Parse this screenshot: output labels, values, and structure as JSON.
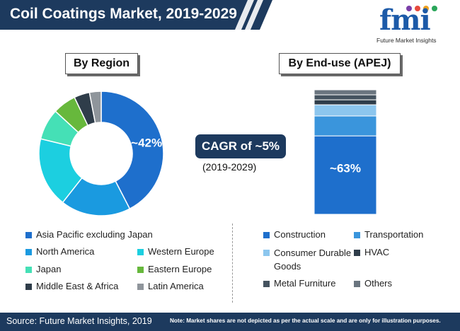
{
  "title": "Coil Coatings Market, 2019-2029",
  "logo": {
    "letters": "fmi",
    "tagline": "Future Market Insights"
  },
  "cagr": {
    "label": "CAGR of ~5%",
    "period": "(2019-2029)"
  },
  "chart_data": [
    {
      "type": "pie",
      "title": "By Region",
      "categories": [
        "Asia Pacific excluding Japan",
        "North America",
        "Western Europe",
        "Japan",
        "Eastern Europe",
        "Middle East & Africa",
        "Latin America"
      ],
      "values": [
        42,
        18,
        18,
        8,
        6,
        4,
        3
      ],
      "colors": [
        "#1e6fcc",
        "#1a9ae0",
        "#1ccfe0",
        "#45e0b6",
        "#67b83c",
        "#2f3d4a",
        "#8f959b"
      ],
      "data_labels": [
        "~42%",
        "",
        "",
        "",
        "",
        "",
        ""
      ],
      "hole": "donut",
      "legend_position": "bottom-left"
    },
    {
      "type": "bar",
      "title": "By End-use (APEJ)",
      "stacked": true,
      "categories": [
        "Construction",
        "Transportation",
        "Consumer Durable Goods",
        "HVAC",
        "Metal Furniture",
        "Others"
      ],
      "values": [
        63,
        16,
        9,
        4,
        4,
        4
      ],
      "colors": [
        "#1e6fcc",
        "#3a95dc",
        "#8cc6ee",
        "#2f3d4a",
        "#45535f",
        "#6a757f"
      ],
      "data_labels": [
        "~63%",
        "",
        "",
        "",
        "",
        ""
      ],
      "legend_position": "bottom-right"
    }
  ],
  "footer": {
    "source": "Source: Future Market Insights, 2019",
    "note": "Note: Market shares are not depicted as per the actual scale and are only for illustration purposes."
  }
}
